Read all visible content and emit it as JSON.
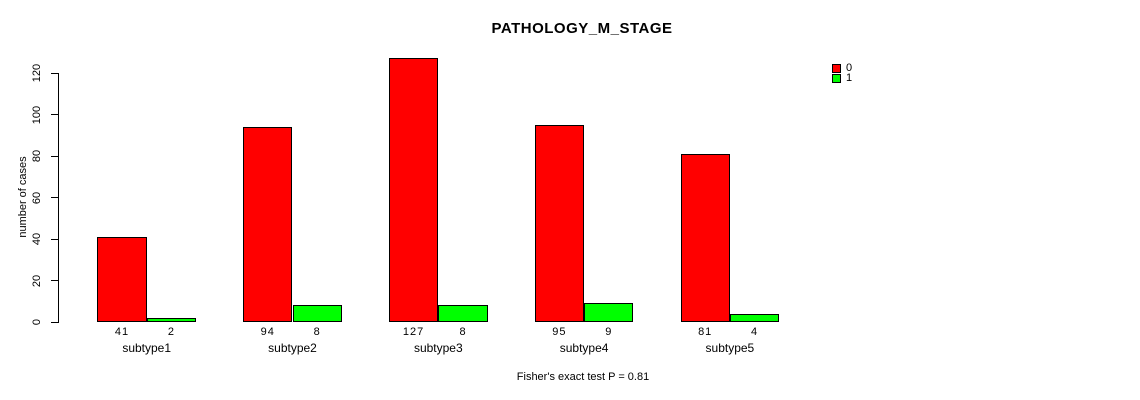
{
  "chart_data": {
    "type": "bar",
    "title": "PATHOLOGY_M_STAGE",
    "ylabel": "number of cases",
    "xlabel": "",
    "caption": "Fisher's exact test P = 0.81",
    "categories": [
      "subtype1",
      "subtype2",
      "subtype3",
      "subtype4",
      "subtype5"
    ],
    "series": [
      {
        "name": "0",
        "color": "#ff0000",
        "values": [
          41,
          94,
          127,
          95,
          81
        ]
      },
      {
        "name": "1",
        "color": "#00ff00",
        "values": [
          2,
          8,
          8,
          9,
          4
        ]
      }
    ],
    "ylim": [
      0,
      120
    ],
    "yticks": [
      0,
      20,
      40,
      60,
      80,
      100,
      120
    ],
    "grid": false,
    "legend_position": "top-right",
    "bar_value_labels": true
  },
  "colors": {
    "background": "#ffffff",
    "text": "#000000",
    "axis": "#000000",
    "bar_border": "#000000",
    "series0": "#ff0000",
    "series1": "#00ff00"
  }
}
